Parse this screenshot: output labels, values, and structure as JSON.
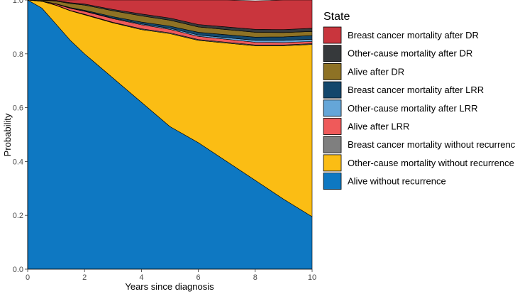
{
  "chart_data": {
    "type": "area",
    "stacked": true,
    "xlabel": "Years since diagnosis",
    "ylabel": "Probability",
    "xlim": [
      0,
      10
    ],
    "ylim": [
      0,
      1
    ],
    "x_ticks": [
      0,
      2,
      4,
      6,
      8,
      10
    ],
    "y_ticks": [
      0.0,
      0.2,
      0.4,
      0.6,
      0.8,
      1.0
    ],
    "y_tick_labels": [
      "0.0",
      "0.2",
      "0.4",
      "0.6",
      "0.8",
      "1.0"
    ],
    "grid": false,
    "legend_title": "State",
    "legend_position": "right",
    "x": [
      0,
      0.5,
      1,
      1.5,
      2,
      3,
      4,
      5,
      6,
      7,
      8,
      9,
      10
    ],
    "series": [
      {
        "name": "Alive without recurrence",
        "color": "#0e78c2",
        "values": [
          1.0,
          0.97,
          0.91,
          0.85,
          0.8,
          0.71,
          0.62,
          0.53,
          0.47,
          0.4,
          0.33,
          0.26,
          0.195
        ]
      },
      {
        "name": "Other-cause mortality without recurrence",
        "color": "#fbbd14",
        "values": [
          0.0,
          0.025,
          0.07,
          0.11,
          0.145,
          0.205,
          0.27,
          0.345,
          0.38,
          0.44,
          0.5,
          0.57,
          0.64
        ]
      },
      {
        "name": "Breast cancer mortality without recurrence",
        "color": "#7f7f7f",
        "values": [
          0.0,
          0.0,
          0.001,
          0.001,
          0.002,
          0.002,
          0.003,
          0.003,
          0.003,
          0.003,
          0.003,
          0.003,
          0.003
        ]
      },
      {
        "name": "Alive after LRR",
        "color": "#ef5a5a",
        "values": [
          0.0,
          0.001,
          0.004,
          0.008,
          0.011,
          0.014,
          0.015,
          0.013,
          0.012,
          0.011,
          0.01,
          0.009,
          0.008
        ]
      },
      {
        "name": "Other-cause mortality after LRR",
        "color": "#65a6d8",
        "values": [
          0.0,
          0.0,
          0.0,
          0.001,
          0.001,
          0.002,
          0.003,
          0.004,
          0.005,
          0.006,
          0.007,
          0.008,
          0.008
        ]
      },
      {
        "name": "Breast cancer mortality after LRR",
        "color": "#13476c",
        "values": [
          0.0,
          0.0,
          0.001,
          0.002,
          0.003,
          0.005,
          0.007,
          0.008,
          0.01,
          0.011,
          0.012,
          0.013,
          0.014
        ]
      },
      {
        "name": "Alive after DR",
        "color": "#8e7225",
        "values": [
          0.0,
          0.003,
          0.01,
          0.015,
          0.019,
          0.022,
          0.023,
          0.022,
          0.02,
          0.019,
          0.018,
          0.016,
          0.015
        ]
      },
      {
        "name": "Other-cause mortality after DR",
        "color": "#36393b",
        "values": [
          0.0,
          0.0,
          0.002,
          0.003,
          0.004,
          0.005,
          0.007,
          0.008,
          0.009,
          0.01,
          0.011,
          0.011,
          0.012
        ]
      },
      {
        "name": "Breast cancer mortality after DR",
        "color": "#c9353d",
        "values": [
          0.0,
          0.001,
          0.002,
          0.01,
          0.016,
          0.035,
          0.052,
          0.067,
          0.091,
          0.1,
          0.106,
          0.11,
          0.105
        ]
      }
    ]
  }
}
